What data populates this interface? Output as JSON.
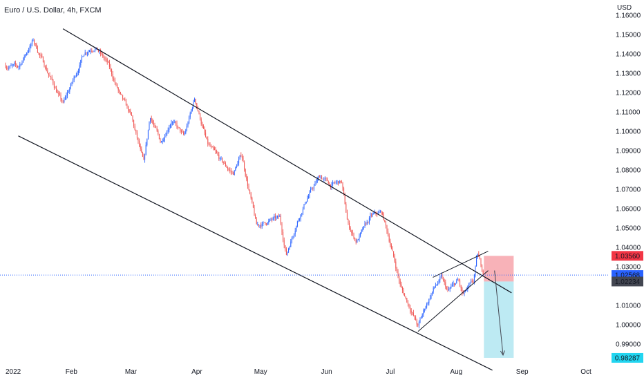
{
  "header": {
    "symbol_title": "Euro / U.S. Dollar, 4h, FXCM",
    "currency": "USD"
  },
  "chart_data": {
    "type": "candlestick",
    "title": "Euro / U.S. Dollar, 4h, FXCM",
    "y_unit": "USD",
    "ylim": [
      0.9765,
      1.1698
    ],
    "y_ticks": [
      "1.16000",
      "1.15000",
      "1.14000",
      "1.13000",
      "1.12000",
      "1.11000",
      "1.10000",
      "1.09000",
      "1.08000",
      "1.07000",
      "1.06000",
      "1.05000",
      "1.04000",
      "1.03000",
      "1.01000",
      "1.00000",
      "0.99000"
    ],
    "x_ticks": [
      "2022",
      "Feb",
      "Mar",
      "Apr",
      "May",
      "Jun",
      "Jul",
      "Aug",
      "Sep",
      "Oct"
    ],
    "price_path": [
      {
        "x": "2022-01-01",
        "y": 1.134
      },
      {
        "x": "2022-01-07",
        "y": 1.133
      },
      {
        "x": "2022-01-14",
        "y": 1.147
      },
      {
        "x": "2022-01-19",
        "y": 1.135
      },
      {
        "x": "2022-01-28",
        "y": 1.114
      },
      {
        "x": "2022-02-04",
        "y": 1.132
      },
      {
        "x": "2022-02-07",
        "y": 1.141
      },
      {
        "x": "2022-02-12",
        "y": 1.144
      },
      {
        "x": "2022-02-18",
        "y": 1.135
      },
      {
        "x": "2022-02-24",
        "y": 1.118
      },
      {
        "x": "2022-03-01",
        "y": 1.108
      },
      {
        "x": "2022-03-07",
        "y": 1.083
      },
      {
        "x": "2022-03-10",
        "y": 1.108
      },
      {
        "x": "2022-03-15",
        "y": 1.094
      },
      {
        "x": "2022-03-20",
        "y": 1.106
      },
      {
        "x": "2022-03-26",
        "y": 1.097
      },
      {
        "x": "2022-03-31",
        "y": 1.117
      },
      {
        "x": "2022-04-06",
        "y": 1.093
      },
      {
        "x": "2022-04-12",
        "y": 1.085
      },
      {
        "x": "2022-04-18",
        "y": 1.078
      },
      {
        "x": "2022-04-22",
        "y": 1.088
      },
      {
        "x": "2022-04-26",
        "y": 1.067
      },
      {
        "x": "2022-04-29",
        "y": 1.051
      },
      {
        "x": "2022-05-06",
        "y": 1.054
      },
      {
        "x": "2022-05-10",
        "y": 1.055
      },
      {
        "x": "2022-05-13",
        "y": 1.036
      },
      {
        "x": "2022-05-18",
        "y": 1.053
      },
      {
        "x": "2022-05-23",
        "y": 1.066
      },
      {
        "x": "2022-05-29",
        "y": 1.077
      },
      {
        "x": "2022-06-03",
        "y": 1.072
      },
      {
        "x": "2022-06-08",
        "y": 1.074
      },
      {
        "x": "2022-06-11",
        "y": 1.052
      },
      {
        "x": "2022-06-15",
        "y": 1.043
      },
      {
        "x": "2022-06-22",
        "y": 1.056
      },
      {
        "x": "2022-06-27",
        "y": 1.058
      },
      {
        "x": "2022-07-01",
        "y": 1.042
      },
      {
        "x": "2022-07-06",
        "y": 1.019
      },
      {
        "x": "2022-07-11",
        "y": 1.007
      },
      {
        "x": "2022-07-14",
        "y": 0.999
      },
      {
        "x": "2022-07-17",
        "y": 1.008
      },
      {
        "x": "2022-07-21",
        "y": 1.018
      },
      {
        "x": "2022-07-25",
        "y": 1.024
      },
      {
        "x": "2022-07-28",
        "y": 1.017
      },
      {
        "x": "2022-08-02",
        "y": 1.023
      },
      {
        "x": "2022-08-04",
        "y": 1.015
      },
      {
        "x": "2022-08-09",
        "y": 1.022
      },
      {
        "x": "2022-08-11",
        "y": 1.036
      },
      {
        "x": "2022-08-14",
        "y": 1.026
      }
    ],
    "channel_upper": [
      {
        "x": "2022-01-28",
        "y": 1.153
      },
      {
        "x": "2022-08-27",
        "y": 1.0165
      }
    ],
    "channel_lower": [
      {
        "x": "2022-01-07",
        "y": 1.0976
      },
      {
        "x": "2022-08-18",
        "y": 0.9765
      }
    ],
    "wedge_upper": [
      {
        "x": "2022-07-21",
        "y": 1.0245
      },
      {
        "x": "2022-08-16",
        "y": 1.038
      }
    ],
    "wedge_lower": [
      {
        "x": "2022-07-14",
        "y": 0.9965
      },
      {
        "x": "2022-08-16",
        "y": 1.028
      }
    ],
    "position": {
      "type": "short",
      "stop": 1.0356,
      "entry": 1.02234,
      "target": 0.98287,
      "start": "2022-08-14",
      "end": "2022-08-28"
    },
    "projection_arrow": [
      {
        "x": "2022-08-19",
        "y": 1.028
      },
      {
        "x": "2022-08-23",
        "y": 0.9843
      }
    ],
    "current_price": 1.02568,
    "price_labels": [
      {
        "value": "1.03560",
        "color": "#f23645"
      },
      {
        "value": "1.02568",
        "color": "#2962ff"
      },
      {
        "value": "1.02234",
        "color": "#434651"
      },
      {
        "value": "0.98287",
        "color": "#22d5f0"
      }
    ],
    "colors": {
      "up": "#2962ff",
      "down": "#ef5350",
      "stop_zone": "#f7a4ac",
      "target_zone": "#b9e9f2",
      "trendline": "#131722",
      "current_price_line": "#2962ff"
    }
  }
}
